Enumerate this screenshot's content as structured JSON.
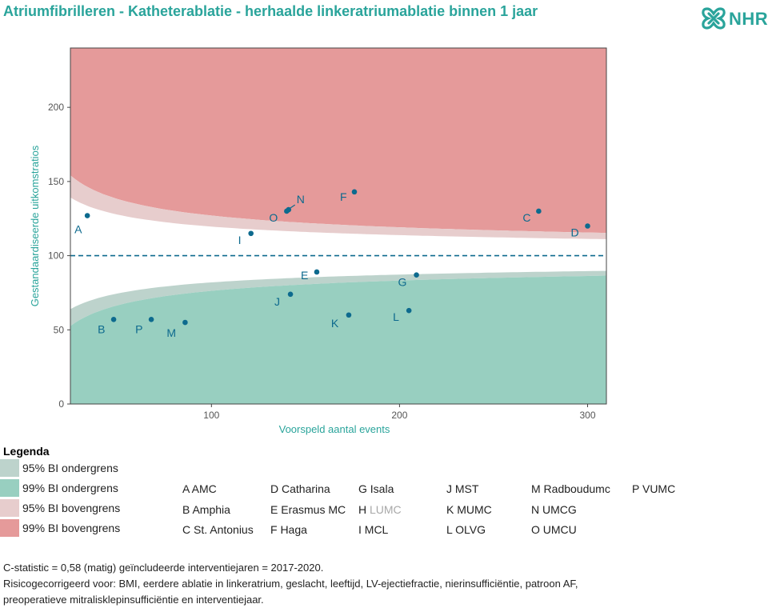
{
  "title": "Atriumfibrilleren - Katheterablatie - herhaalde linkeratriumablatie binnen 1 jaar",
  "logo": {
    "text": "NHR",
    "icon": "nhr-heart-knot-icon"
  },
  "colors": {
    "accent": "#2aa49b",
    "lower95": "#bdd3cc",
    "lower99": "#98cfc0",
    "upper95": "#e7cdcd",
    "upper99": "#e59a9a",
    "point": "#0d6a8e"
  },
  "chart_data": {
    "type": "scatter",
    "xlabel": "Voorspeld aantal events",
    "ylabel": "Gestandaardiseerde uitkomstratios",
    "xlim": [
      25,
      310
    ],
    "ylim": [
      0,
      240
    ],
    "xticks": [
      100,
      200,
      300
    ],
    "yticks": [
      0,
      50,
      100,
      150,
      200
    ],
    "reference_line": 100,
    "points": [
      {
        "label": "A",
        "x": 34,
        "y": 127
      },
      {
        "label": "B",
        "x": 48,
        "y": 57
      },
      {
        "label": "P",
        "x": 68,
        "y": 57
      },
      {
        "label": "M",
        "x": 86,
        "y": 55
      },
      {
        "label": "I",
        "x": 121,
        "y": 115
      },
      {
        "label": "O",
        "x": 140,
        "y": 130
      },
      {
        "label": "N",
        "x": 141,
        "y": 131
      },
      {
        "label": "J",
        "x": 142,
        "y": 74
      },
      {
        "label": "E",
        "x": 156,
        "y": 89
      },
      {
        "label": "K",
        "x": 173,
        "y": 60
      },
      {
        "label": "F",
        "x": 176,
        "y": 143
      },
      {
        "label": "L",
        "x": 205,
        "y": 63
      },
      {
        "label": "G",
        "x": 209,
        "y": 87
      },
      {
        "label": "C",
        "x": 274,
        "y": 130
      },
      {
        "label": "D",
        "x": 300,
        "y": 120
      }
    ]
  },
  "legend": {
    "title": "Legenda",
    "items": [
      {
        "label": "95% BI ondergrens",
        "color_key": "lower95"
      },
      {
        "label": "99% BI ondergrens",
        "color_key": "lower99"
      },
      {
        "label": "95% BI bovengrens",
        "color_key": "upper95"
      },
      {
        "label": "99% BI bovengrens",
        "color_key": "upper99"
      }
    ]
  },
  "hospitals": [
    [
      "A AMC",
      "B Amphia",
      "C St. Antonius"
    ],
    [
      "D Catharina",
      "E Erasmus MC",
      "F Haga"
    ],
    [
      "G Isala",
      "H LUMC",
      "I MCL"
    ],
    [
      "J MST",
      "K MUMC",
      "L OLVG"
    ],
    [
      "M Radboudumc",
      "N UMCG",
      "O UMCU"
    ],
    [
      "P VUMC"
    ]
  ],
  "footnotes": [
    "C-statistic = 0,58 (matig) geïncludeerde interventiejaren = 2017-2020.",
    "Risicogecorrigeerd voor: BMI, eerdere ablatie in linkeratrium, geslacht, leeftijd, LV-ejectiefractie, nierinsufficiëntie, patroon AF,",
    "preoperatieve mitralisklepinsufficiëntie en interventiejaar."
  ]
}
